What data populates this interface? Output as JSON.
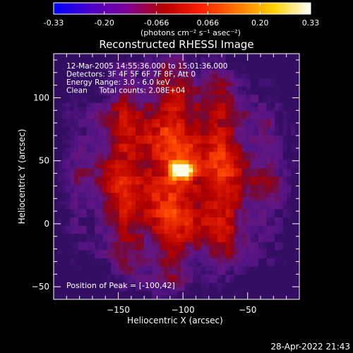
{
  "colorbar": {
    "tick_labels": [
      "-0.33",
      "-0.20",
      "-0.066",
      "0.066",
      "0.20",
      "0.33"
    ],
    "tick_values": [
      -0.33,
      -0.2,
      -0.066,
      0.066,
      0.2,
      0.33
    ],
    "range": [
      -0.33,
      0.33
    ],
    "units_label": "(photons cm⁻² s⁻¹ asec⁻²)",
    "gradient_colors": [
      "#0000ff",
      "#4b00c8",
      "#7d0096",
      "#b40000",
      "#ff1e00",
      "#ff7800",
      "#ffd200",
      "#ffffff"
    ]
  },
  "chart_data": {
    "type": "heatmap",
    "title": "Reconstructed RHESSI Image",
    "xlabel": "Heliocentric X (arcsec)",
    "ylabel": "Heliocentric Y (arcsec)",
    "xlim": [
      -200,
      -10
    ],
    "ylim": [
      -60,
      135
    ],
    "x_ticks": [
      -150,
      -100,
      -50
    ],
    "x_tick_labels": [
      "−150",
      "−100",
      "−50"
    ],
    "y_ticks": [
      -50,
      0,
      50,
      100
    ],
    "y_tick_labels": [
      "−50",
      "0",
      "50",
      "100"
    ],
    "peak": {
      "x": -100,
      "y": 42,
      "value": 0.33
    },
    "emission_region": {
      "x_range": [
        -180,
        -30
      ],
      "y_range": [
        -45,
        125
      ]
    },
    "info_lines": [
      "12-Mar-2005 14:55:36.000 to 15:01:36.000",
      "Detectors: 3F 4F 5F 6F 7F 8F, Att 0",
      "Energy Range: 3.0 - 6.0 keV",
      "Clean     Total counts: 2.08E+04"
    ],
    "peak_label": "Position of Peak = [-100,42]"
  },
  "footer": {
    "timestamp": "28-Apr-2022 21:43"
  }
}
